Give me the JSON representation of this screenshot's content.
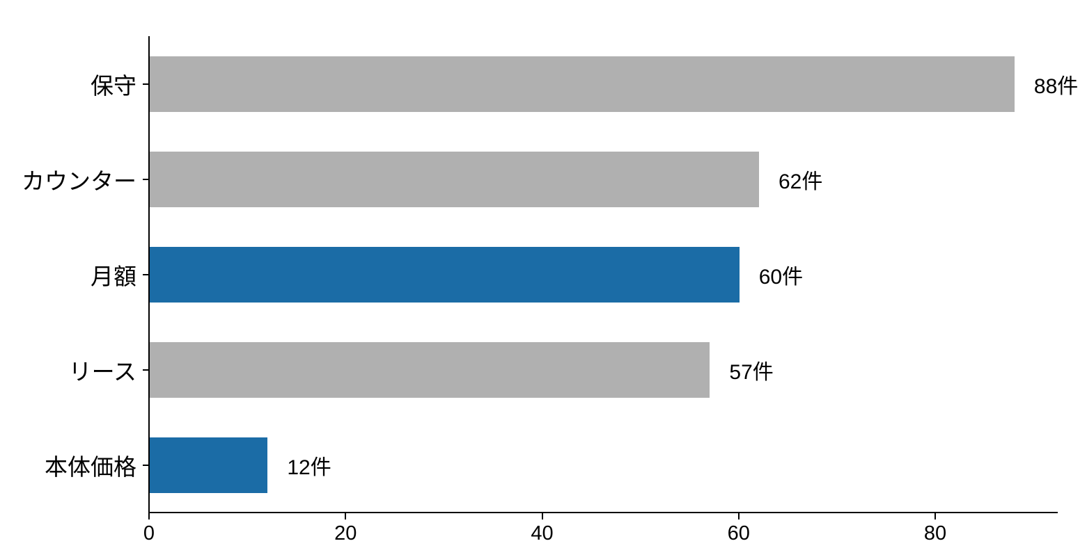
{
  "chart_data": {
    "type": "bar",
    "orientation": "horizontal",
    "title": "",
    "xlabel": "",
    "ylabel": "",
    "categories": [
      "保守",
      "カウンター",
      "月額",
      "リース",
      "本体価格"
    ],
    "values": [
      88,
      62,
      60,
      57,
      12
    ],
    "bar_labels": [
      "88件",
      "62件",
      "60件",
      "57件",
      "12件"
    ],
    "unit_suffix": "件",
    "bar_colors": [
      "#b0b0b0",
      "#b0b0b0",
      "#1b6ca6",
      "#b0b0b0",
      "#1b6ca6"
    ],
    "default_bar_color": "#b0b0b0",
    "highlight_bar_color": "#1b6ca6",
    "x_ticks": [
      "0",
      "20",
      "40",
      "60",
      "80"
    ],
    "x_tick_values": [
      0,
      20,
      40,
      60,
      80
    ],
    "xlim": [
      0,
      92.4
    ],
    "grid": false,
    "legend_position": "none",
    "axis_color": "#000000",
    "text_color": "#000000",
    "background_color": "#ffffff"
  }
}
